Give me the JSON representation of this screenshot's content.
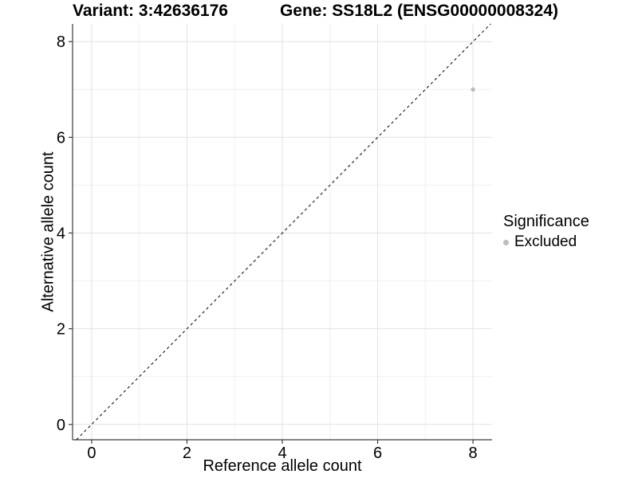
{
  "chart_data": {
    "type": "scatter",
    "title_left": "Variant: 3:42636176",
    "title_right": "Gene: SS18L2 (ENSG00000008324)",
    "xlabel": "Reference allele count",
    "ylabel": "Alternative allele count",
    "xlim": [
      -0.4,
      8.4
    ],
    "ylim": [
      -0.32,
      8.37
    ],
    "xticks": [
      0,
      2,
      4,
      6,
      8
    ],
    "yticks": [
      0,
      2,
      4,
      6,
      8
    ],
    "minor_xticks": [
      1,
      3,
      5,
      7
    ],
    "minor_yticks": [
      1,
      3,
      5,
      7
    ],
    "grid": "major+minor",
    "legend_position": "right-center",
    "series": [
      {
        "name": "Excluded",
        "color": "#bcbcbc",
        "point_radius": 2.7,
        "points": [
          {
            "x": 8,
            "y": 7
          }
        ]
      }
    ],
    "reference_line": {
      "kind": "identity y=x",
      "slope": 1,
      "intercept": 0,
      "style": "dashed",
      "color": "#000000"
    },
    "legend": {
      "title": "Significance",
      "entries": [
        {
          "label": "Excluded",
          "color": "#bcbcbc"
        }
      ]
    }
  },
  "colors": {
    "background": "#ffffff",
    "grid_major": "#e2e2e2",
    "grid_minor": "#efefef",
    "axis_line": "#3c3c3c",
    "tick_mark": "#3c3c3c",
    "text": "#000000",
    "point": "#bcbcbc"
  }
}
